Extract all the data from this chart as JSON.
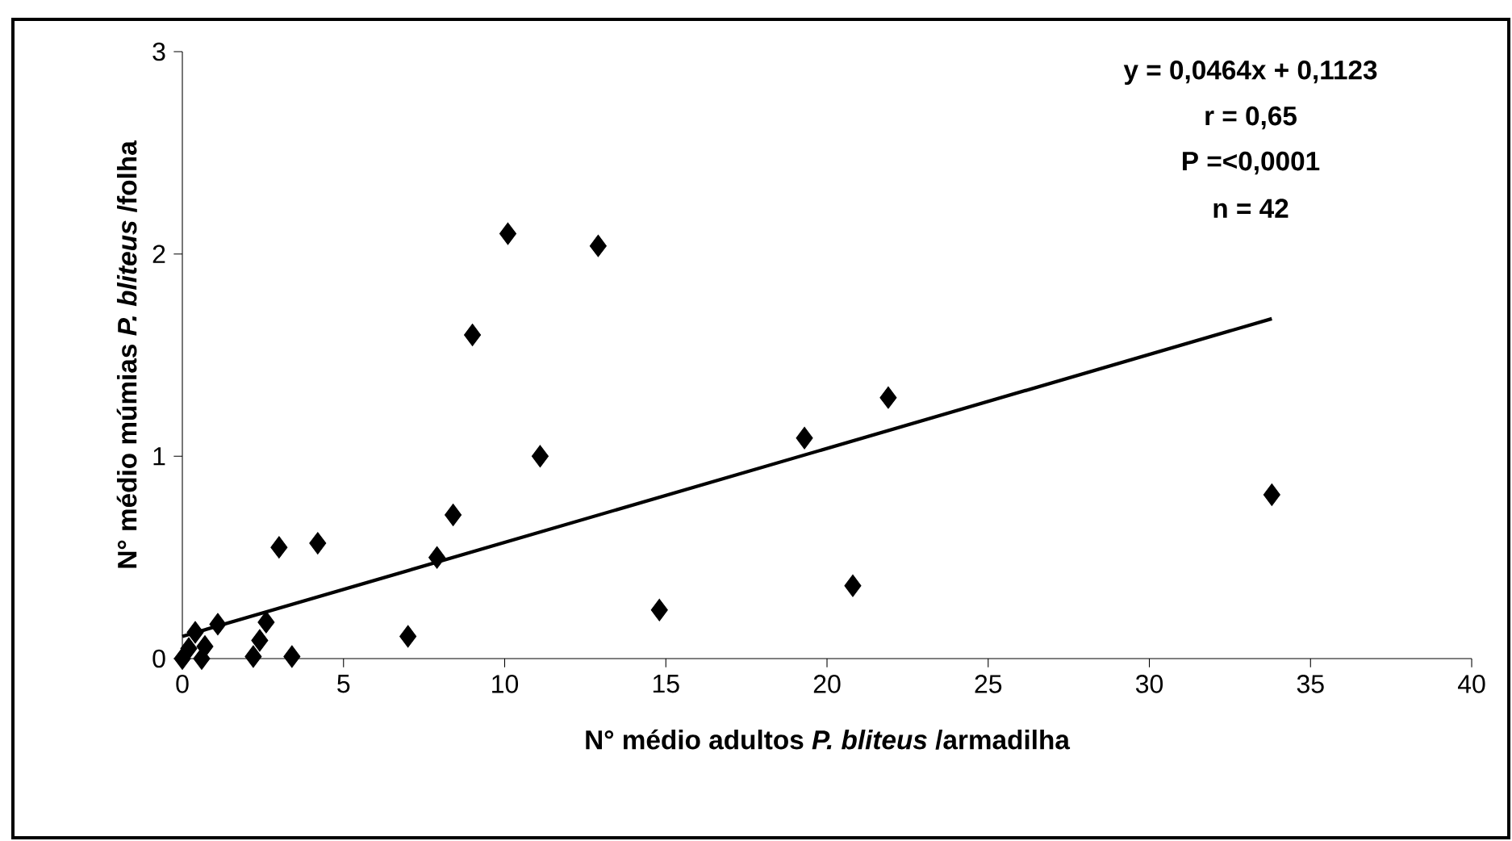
{
  "chart_data": {
    "type": "scatter",
    "xlabel": "N° médio adultos *P. bliteus* /armadilha",
    "ylabel": "N° médio múmias *P. bliteus* /folha",
    "annotations": [
      "y = 0,0464x + 0,1123",
      "r = 0,65",
      "P =<0,0001",
      "n = 42"
    ],
    "xlim": [
      0,
      40
    ],
    "xticks": [
      0,
      5,
      10,
      15,
      20,
      25,
      30,
      35,
      40
    ],
    "ylim": [
      0,
      3
    ],
    "yticks": [
      0,
      1,
      2,
      3
    ],
    "grid": false,
    "series": [
      {
        "color": "#000000",
        "marker": "diamond",
        "x": [
          10.1,
          12.9,
          9.0,
          11.1,
          19.3,
          21.9,
          33.8,
          20.8,
          14.8,
          8.4,
          7.9,
          7.0,
          4.2,
          3.0,
          3.4,
          2.2,
          2.4,
          2.6,
          1.1,
          0.4,
          0.7,
          0.6,
          0.2,
          0
        ],
        "values": [
          2.1,
          2.04,
          1.6,
          1.0,
          1.09,
          1.29,
          0.81,
          0.36,
          0.24,
          0.71,
          0.5,
          0.11,
          0.57,
          0.55,
          0.01,
          0.01,
          0.09,
          0.18,
          0.17,
          0.13,
          0.06,
          0.0,
          0.05,
          0.0
        ]
      },
      {
        "type": "line",
        "color": "#000000",
        "marker": "none",
        "line_style": "solid",
        "x": [
          0,
          33.8
        ],
        "values": [
          0.11,
          1.68
        ]
      }
    ]
  }
}
